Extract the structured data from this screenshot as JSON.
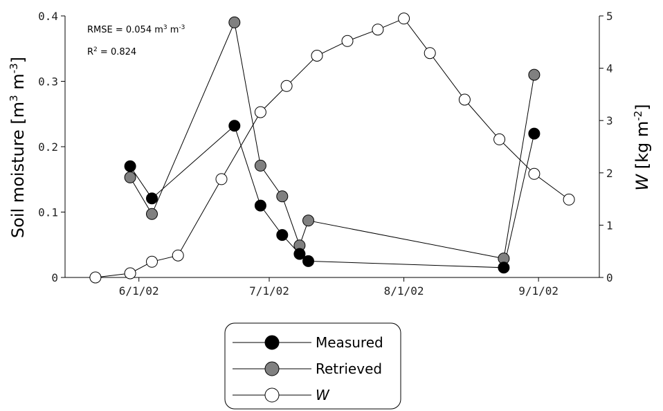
{
  "chart_data": {
    "type": "line",
    "x_type": "date",
    "xlim": [
      "2002-05-15",
      "2002-09-15"
    ],
    "x_ticks": [
      {
        "date": "2002-06-01",
        "label": "6/1/02"
      },
      {
        "date": "2002-07-01",
        "label": "7/1/02"
      },
      {
        "date": "2002-08-01",
        "label": "8/1/02"
      },
      {
        "date": "2002-09-01",
        "label": "9/1/02"
      }
    ],
    "y_left": {
      "label_main": "Soil moisture [m",
      "label_sup1": "3",
      "label_mid": " m",
      "label_sup2": "-3",
      "label_end": "]",
      "lim": [
        0,
        0.4
      ],
      "ticks": [
        {
          "value": 0,
          "label": "0"
        },
        {
          "value": 0.1,
          "label": "0.1"
        },
        {
          "value": 0.2,
          "label": "0.2"
        },
        {
          "value": 0.3,
          "label": "0.3"
        },
        {
          "value": 0.4,
          "label": "0.4"
        }
      ]
    },
    "y_right": {
      "label_var": "W",
      "label_main": " [kg m",
      "label_sup": "-2",
      "label_end": "]",
      "lim": [
        0,
        5
      ],
      "ticks": [
        {
          "value": 0,
          "label": "0"
        },
        {
          "value": 1,
          "label": "1"
        },
        {
          "value": 2,
          "label": "2"
        },
        {
          "value": 3,
          "label": "3"
        },
        {
          "value": 4,
          "label": "4"
        },
        {
          "value": 5,
          "label": "5"
        }
      ]
    },
    "annotations": {
      "rmse": {
        "text": "RMSE = 0.054 m",
        "sup1": "3",
        "mid": " m",
        "sup2": "-3"
      },
      "r2": {
        "pre": "R",
        "sup": "2",
        "post": " = 0.824"
      }
    },
    "legend_position": "bottom-center",
    "grid": false,
    "series": [
      {
        "name": "Measured",
        "axis": "left",
        "marker_fill": "#000000",
        "points": [
          {
            "x": "2002-05-30",
            "y": 0.17
          },
          {
            "x": "2002-06-04",
            "y": 0.121
          },
          {
            "x": "2002-06-23",
            "y": 0.232
          },
          {
            "x": "2002-06-29",
            "y": 0.11
          },
          {
            "x": "2002-07-04",
            "y": 0.065
          },
          {
            "x": "2002-07-08",
            "y": 0.036
          },
          {
            "x": "2002-07-10",
            "y": 0.025
          },
          {
            "x": "2002-08-24",
            "y": 0.015
          },
          {
            "x": "2002-08-31",
            "y": 0.22
          }
        ]
      },
      {
        "name": "Retrieved",
        "axis": "left",
        "marker_fill": "#808080",
        "points": [
          {
            "x": "2002-05-30",
            "y": 0.153
          },
          {
            "x": "2002-06-04",
            "y": 0.097
          },
          {
            "x": "2002-06-23",
            "y": 0.39
          },
          {
            "x": "2002-06-29",
            "y": 0.171
          },
          {
            "x": "2002-07-04",
            "y": 0.124
          },
          {
            "x": "2002-07-08",
            "y": 0.049
          },
          {
            "x": "2002-07-10",
            "y": 0.087
          },
          {
            "x": "2002-08-24",
            "y": 0.029
          },
          {
            "x": "2002-08-31",
            "y": 0.31
          }
        ]
      },
      {
        "name": "W",
        "axis": "right",
        "marker_fill": "#ffffff",
        "points": [
          {
            "x": "2002-05-22",
            "y": 0.0
          },
          {
            "x": "2002-05-30",
            "y": 0.08
          },
          {
            "x": "2002-06-04",
            "y": 0.3
          },
          {
            "x": "2002-06-10",
            "y": 0.42
          },
          {
            "x": "2002-06-20",
            "y": 1.88
          },
          {
            "x": "2002-06-29",
            "y": 3.16
          },
          {
            "x": "2002-07-05",
            "y": 3.66
          },
          {
            "x": "2002-07-12",
            "y": 4.24
          },
          {
            "x": "2002-07-19",
            "y": 4.52
          },
          {
            "x": "2002-07-26",
            "y": 4.74
          },
          {
            "x": "2002-08-01",
            "y": 4.95
          },
          {
            "x": "2002-08-07",
            "y": 4.29
          },
          {
            "x": "2002-08-15",
            "y": 3.4
          },
          {
            "x": "2002-08-23",
            "y": 2.64
          },
          {
            "x": "2002-08-31",
            "y": 1.98
          },
          {
            "x": "2002-09-08",
            "y": 1.49
          }
        ]
      }
    ]
  }
}
